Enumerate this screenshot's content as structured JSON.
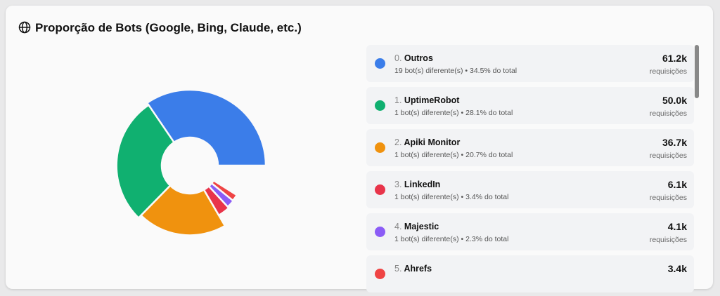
{
  "header": {
    "title": "Proporção de Bots (Google, Bing, Claude, etc.)"
  },
  "chart_data": {
    "type": "donut",
    "items": [
      {
        "rank": "0.",
        "name": "Outros",
        "bots": "19 bot(s) diferente(s)",
        "share": 34.5,
        "share_label": "34.5% do total",
        "requests": 61200,
        "requests_label": "61.2k",
        "unit": "requisições",
        "color": "#3b7de9"
      },
      {
        "rank": "1.",
        "name": "UptimeRobot",
        "bots": "1 bot(s) diferente(s)",
        "share": 28.1,
        "share_label": "28.1% do total",
        "requests": 50000,
        "requests_label": "50.0k",
        "unit": "requisições",
        "color": "#10b070"
      },
      {
        "rank": "2.",
        "name": "Apiki Monitor",
        "bots": "1 bot(s) diferente(s)",
        "share": 20.7,
        "share_label": "20.7% do total",
        "requests": 36700,
        "requests_label": "36.7k",
        "unit": "requisições",
        "color": "#f0920e"
      },
      {
        "rank": "3.",
        "name": "LinkedIn",
        "bots": "1 bot(s) diferente(s)",
        "share": 3.4,
        "share_label": "3.4% do total",
        "requests": 6100,
        "requests_label": "6.1k",
        "unit": "requisições",
        "color": "#e8344a"
      },
      {
        "rank": "4.",
        "name": "Majestic",
        "bots": "1 bot(s) diferente(s)",
        "share": 2.3,
        "share_label": "2.3% do total",
        "requests": 4100,
        "requests_label": "4.1k",
        "unit": "requisições",
        "color": "#8b5cf6"
      },
      {
        "rank": "5.",
        "name": "Ahrefs",
        "requests": 3400,
        "requests_label": "3.4k",
        "color": "#ef4444"
      }
    ]
  }
}
